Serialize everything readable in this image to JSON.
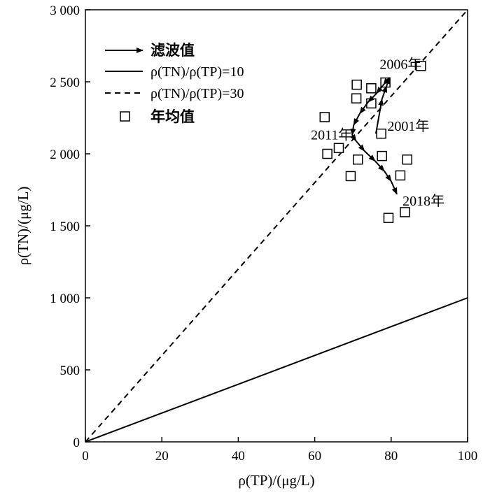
{
  "chart_data": {
    "type": "scatter",
    "xlabel": "ρ(TP)/(μg/L)",
    "ylabel": "ρ(TN)/(μg/L)",
    "xlim": [
      0,
      100
    ],
    "ylim": [
      0,
      3000
    ],
    "x_ticks": [
      "0",
      "20",
      "40",
      "60",
      "80",
      "100"
    ],
    "y_ticks": [
      "0",
      "500",
      "1 000",
      "1 500",
      "2 000",
      "2 500",
      "3 000"
    ],
    "grid": false,
    "legend": {
      "position": "top-left",
      "filtered": "滤波值",
      "ratio10": "ρ(TN)/ρ(TP)=10",
      "ratio30": "ρ(TN)/ρ(TP)=30",
      "annual": "年均值"
    },
    "series": [
      {
        "name": "年均值",
        "points": [
          [
            87.8,
            2610
          ],
          [
            78.5,
            2495
          ],
          [
            71.0,
            2480
          ],
          [
            74.8,
            2455
          ],
          [
            70.9,
            2385
          ],
          [
            74.8,
            2350
          ],
          [
            62.6,
            2255
          ],
          [
            77.4,
            2140
          ],
          [
            63.3,
            2000
          ],
          [
            66.3,
            2040
          ],
          [
            71.3,
            1960
          ],
          [
            77.6,
            1985
          ],
          [
            84.2,
            1960
          ],
          [
            69.4,
            1845
          ],
          [
            82.4,
            1850
          ],
          [
            83.6,
            1595
          ],
          [
            79.3,
            1555
          ]
        ]
      },
      {
        "name": "滤波值",
        "points": [
          [
            76.0,
            2140
          ],
          [
            77.6,
            2380
          ],
          [
            78.8,
            2470
          ],
          [
            79.5,
            2530
          ],
          [
            78.0,
            2480
          ],
          [
            76.2,
            2420
          ],
          [
            74.0,
            2360
          ],
          [
            71.8,
            2280
          ],
          [
            70.2,
            2200
          ],
          [
            69.8,
            2130
          ],
          [
            70.8,
            2090
          ],
          [
            73.0,
            2020
          ],
          [
            75.8,
            1950
          ],
          [
            78.2,
            1880
          ],
          [
            80.0,
            1810
          ],
          [
            81.5,
            1720
          ]
        ]
      },
      {
        "name": "ρ(TN)/ρ(TP)=10",
        "ratio": 10
      },
      {
        "name": "ρ(TN)/ρ(TP)=30",
        "ratio": 30
      }
    ],
    "annotations": [
      {
        "text": "2006年",
        "x": 77.0,
        "y": 2590
      },
      {
        "text": "2001年",
        "x": 79.0,
        "y": 2160
      },
      {
        "text": "2011年",
        "x": 59.0,
        "y": 2100
      },
      {
        "text": "2018年",
        "x": 83.0,
        "y": 1640
      }
    ]
  }
}
